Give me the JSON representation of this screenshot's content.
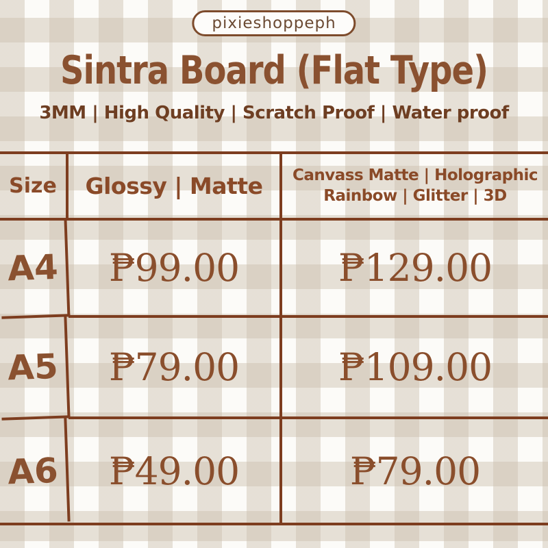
{
  "shop_badge": {
    "label": "pixieshoppeph"
  },
  "product": {
    "title": "Sintra Board (Flat Type)",
    "subtitle": "3MM | High Quality | Scratch Proof | Water proof"
  },
  "price_table": {
    "headers": {
      "size": "Size",
      "glossy_matte": "Glossy | Matte",
      "canvass_line1": "Canvass Matte |  Holographic",
      "canvass_line2": "Rainbow | Glitter | 3D"
    },
    "currency": "PHP",
    "currency_symbol": "₱",
    "rows": [
      {
        "size": "A4",
        "glossy_matte_price": "₱99.00",
        "canvass_price": "₱129.00"
      },
      {
        "size": "A5",
        "glossy_matte_price": "₱79.00",
        "canvass_price": "₱109.00"
      },
      {
        "size": "A6",
        "glossy_matte_price": "₱49.00",
        "canvass_price": "₱79.00"
      }
    ]
  },
  "colors": {
    "title_brown": "#8a5130",
    "subtitle_brown": "#6e3e22",
    "table_line_brown": "#7d3d1f",
    "header_text_brown": "#8a4a28",
    "price_brown": "#8a4e2c",
    "badge_border_brown": "#7d4b2c",
    "badge_text_brown": "#6b4a33",
    "gingham_stripe": "#e7e1d8",
    "background_white": "#fcfbf8"
  }
}
